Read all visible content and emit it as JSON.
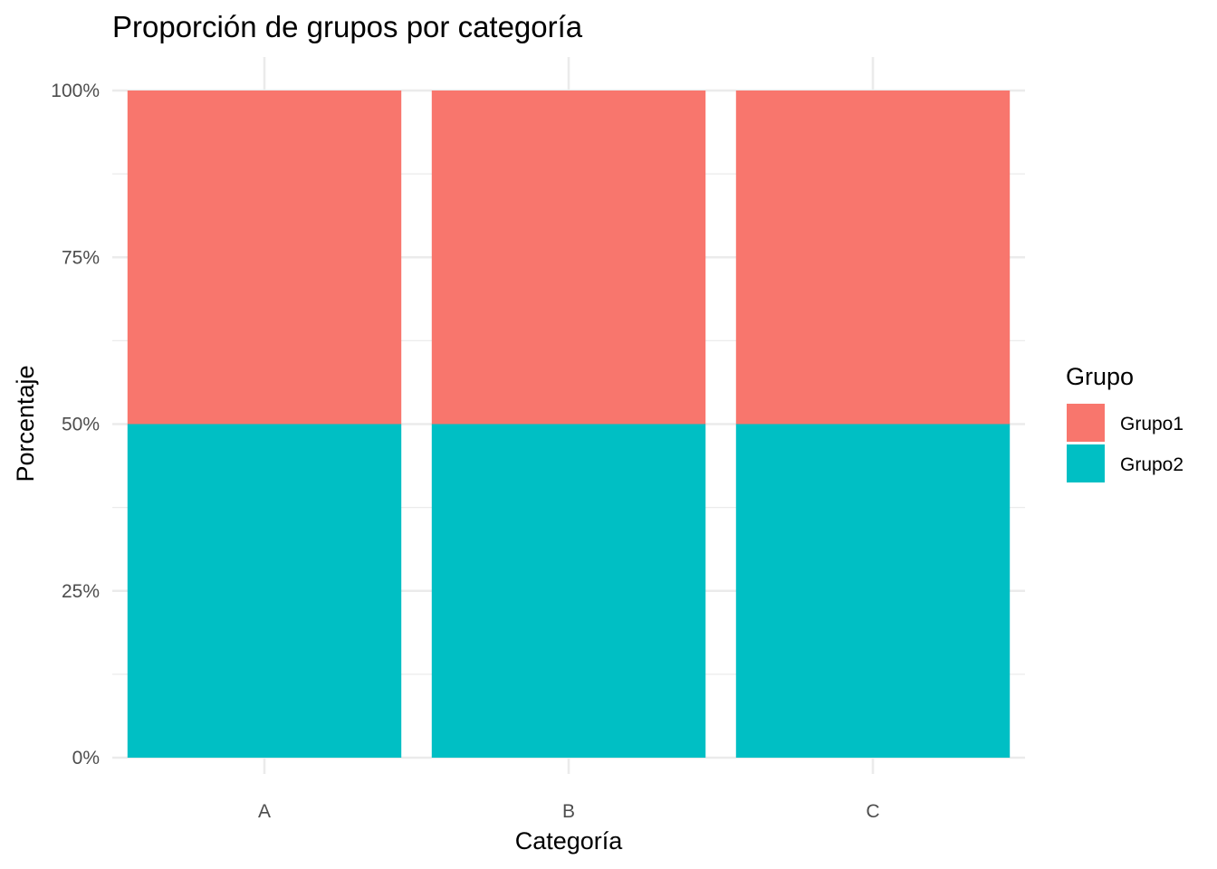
{
  "chart_data": {
    "type": "bar",
    "stacked": true,
    "position": "fill",
    "title": "Proporción de grupos por categoría",
    "xlabel": "Categoría",
    "ylabel": "Porcentaje",
    "categories": [
      "A",
      "B",
      "C"
    ],
    "series": [
      {
        "name": "Grupo1",
        "values": [
          0.5,
          0.5,
          0.5
        ],
        "color": "#F8766D"
      },
      {
        "name": "Grupo2",
        "values": [
          0.5,
          0.5,
          0.5
        ],
        "color": "#00BFC4"
      }
    ],
    "ylim": [
      0,
      1
    ],
    "yticks": [
      0,
      0.25,
      0.5,
      0.75,
      1.0
    ],
    "ytick_labels": [
      "0%",
      "25%",
      "50%",
      "75%",
      "100%"
    ],
    "legend": {
      "title": "Grupo",
      "position": "right"
    },
    "grid": true
  }
}
